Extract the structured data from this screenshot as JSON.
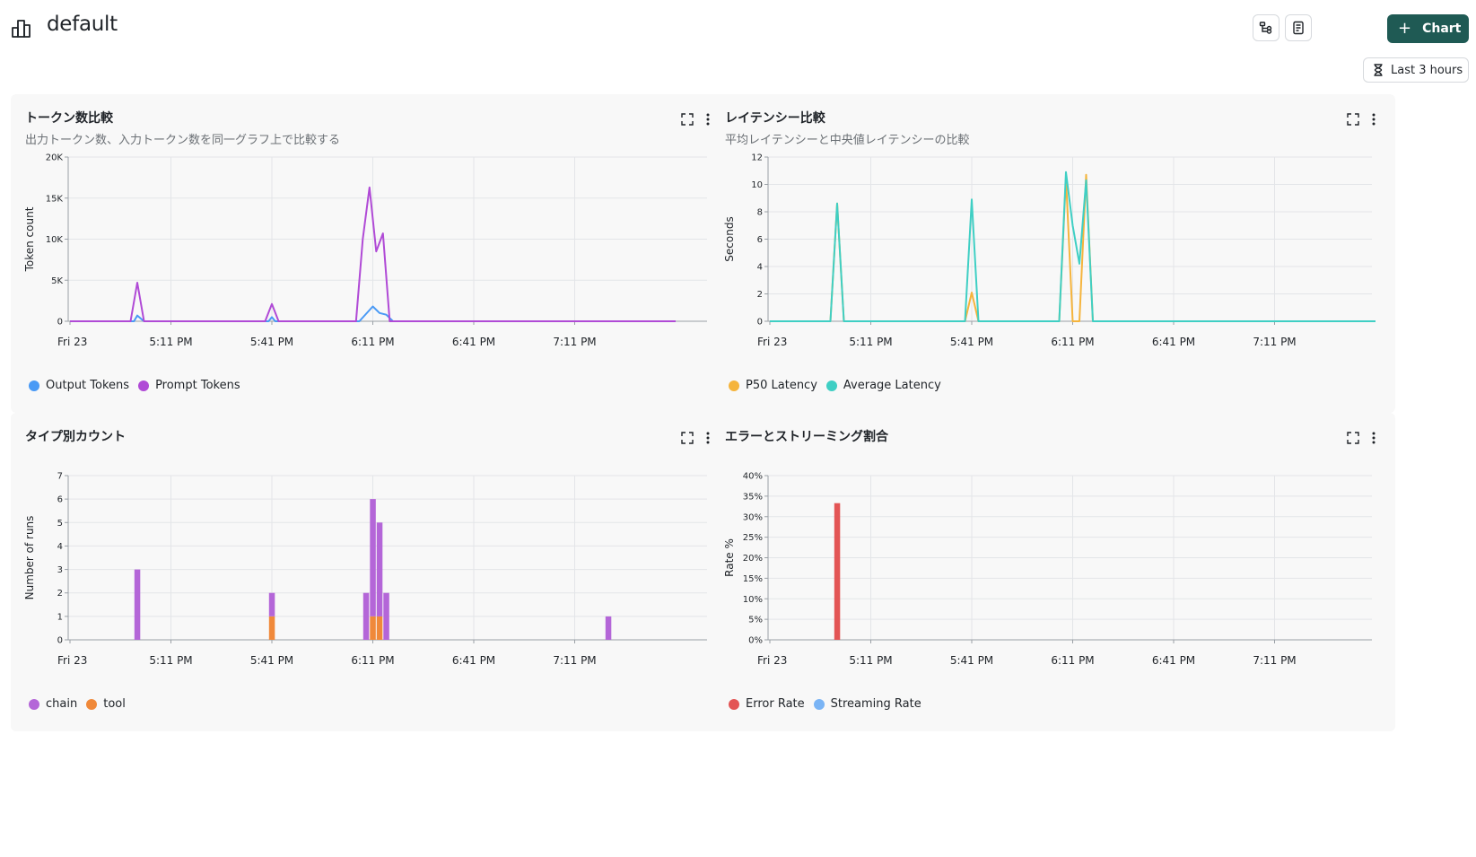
{
  "header": {
    "title": "default",
    "add_chart_label": "Chart",
    "time_range_label": "Last 3 hours"
  },
  "x_ticks": [
    "Fri 23",
    "5:11 PM",
    "5:41 PM",
    "6:11 PM",
    "6:41 PM",
    "7:11 PM"
  ],
  "colors": {
    "output_tokens": "#4a9af5",
    "prompt_tokens": "#b04ad6",
    "p50_latency": "#f5b43c",
    "average_latency": "#3fcfc4",
    "chain": "#b466d8",
    "tool": "#f0893a",
    "error_rate": "#e35555",
    "streaming_rate": "#7ab4f5",
    "accent": "#1f5a54"
  },
  "panels": [
    {
      "id": "tokens",
      "title": "トークン数比較",
      "subtitle": "出力トークン数、入力トークン数を同一グラフ上で比較する",
      "chart_data": {
        "type": "line",
        "ylabel": "Token count",
        "ylim": [
          0,
          20000
        ],
        "yticks": [
          "0",
          "5K",
          "10K",
          "15K",
          "20K"
        ],
        "ytick_values": [
          0,
          5000,
          10000,
          15000,
          20000
        ],
        "grid": true,
        "legend_position": "bottom-left",
        "x_span_minutes": 180,
        "series": [
          {
            "name": "Output Tokens",
            "color_key": "output_tokens",
            "points": [
              [
                0,
                0
              ],
              [
                19,
                0
              ],
              [
                20,
                700
              ],
              [
                22,
                0
              ],
              [
                59,
                0
              ],
              [
                60,
                500
              ],
              [
                61,
                0
              ],
              [
                86,
                0
              ],
              [
                90,
                1800
              ],
              [
                92,
                1000
              ],
              [
                94,
                800
              ],
              [
                96,
                0
              ],
              [
                180,
                0
              ]
            ]
          },
          {
            "name": "Prompt Tokens",
            "color_key": "prompt_tokens",
            "points": [
              [
                0,
                0
              ],
              [
                18,
                0
              ],
              [
                20,
                4700
              ],
              [
                22,
                0
              ],
              [
                58,
                0
              ],
              [
                60,
                2100
              ],
              [
                62,
                0
              ],
              [
                85,
                0
              ],
              [
                87,
                10000
              ],
              [
                89,
                16300
              ],
              [
                91,
                8500
              ],
              [
                93,
                10700
              ],
              [
                95,
                0
              ],
              [
                180,
                0
              ]
            ]
          }
        ]
      }
    },
    {
      "id": "latency",
      "title": "レイテンシー比較",
      "subtitle": "平均レイテンシーと中央値レイテンシーの比較",
      "chart_data": {
        "type": "line",
        "ylabel": "Seconds",
        "ylim": [
          0,
          12
        ],
        "yticks": [
          "0",
          "2",
          "4",
          "6",
          "8",
          "10",
          "12"
        ],
        "ytick_values": [
          0,
          2,
          4,
          6,
          8,
          10,
          12
        ],
        "grid": true,
        "legend_position": "bottom-left",
        "x_span_minutes": 180,
        "series": [
          {
            "name": "P50 Latency",
            "color_key": "p50_latency",
            "points": [
              [
                0,
                0
              ],
              [
                18,
                0
              ],
              [
                20,
                8.6
              ],
              [
                22,
                0
              ],
              [
                58,
                0
              ],
              [
                60,
                2.1
              ],
              [
                62,
                0
              ],
              [
                86,
                0
              ],
              [
                88,
                10.5
              ],
              [
                90,
                0
              ],
              [
                92,
                0
              ],
              [
                94,
                10.7
              ],
              [
                96,
                0
              ],
              [
                180,
                0
              ]
            ]
          },
          {
            "name": "Average Latency",
            "color_key": "average_latency",
            "points": [
              [
                0,
                0
              ],
              [
                18,
                0
              ],
              [
                20,
                8.6
              ],
              [
                22,
                0
              ],
              [
                58,
                0
              ],
              [
                60,
                8.9
              ],
              [
                62,
                0
              ],
              [
                86,
                0
              ],
              [
                88,
                10.9
              ],
              [
                90,
                7.0
              ],
              [
                92,
                4.2
              ],
              [
                94,
                10.3
              ],
              [
                96,
                0
              ],
              [
                180,
                0
              ]
            ]
          }
        ]
      }
    },
    {
      "id": "runs-by-type",
      "title": "タイプ別カウント",
      "subtitle": "",
      "chart_data": {
        "type": "bar",
        "stacked": true,
        "ylabel": "Number of runs",
        "ylim": [
          0,
          7
        ],
        "yticks": [
          "0",
          "1",
          "2",
          "3",
          "4",
          "5",
          "6",
          "7"
        ],
        "ytick_values": [
          0,
          1,
          2,
          3,
          4,
          5,
          6,
          7
        ],
        "grid": true,
        "legend_position": "bottom-left",
        "x_span_minutes": 180,
        "bar_width_minutes": 2,
        "series": [
          {
            "name": "chain",
            "color_key": "chain",
            "points": [
              [
                20,
                3
              ],
              [
                60,
                1
              ],
              [
                88,
                2
              ],
              [
                90,
                5
              ],
              [
                92,
                4
              ],
              [
                94,
                2
              ],
              [
                160,
                1
              ]
            ]
          },
          {
            "name": "tool",
            "color_key": "tool",
            "points": [
              [
                60,
                1
              ],
              [
                90,
                1
              ],
              [
                92,
                1
              ]
            ]
          }
        ]
      }
    },
    {
      "id": "error-streaming",
      "title": "エラーとストリーミング割合",
      "subtitle": "",
      "chart_data": {
        "type": "bar",
        "stacked": false,
        "ylabel": "Rate %",
        "ylim": [
          0,
          40
        ],
        "yticks": [
          "0%",
          "5%",
          "10%",
          "15%",
          "20%",
          "25%",
          "30%",
          "35%",
          "40%"
        ],
        "ytick_values": [
          0,
          5,
          10,
          15,
          20,
          25,
          30,
          35,
          40
        ],
        "grid": true,
        "legend_position": "bottom-left",
        "x_span_minutes": 180,
        "bar_width_minutes": 2,
        "series": [
          {
            "name": "Error Rate",
            "color_key": "error_rate",
            "points": [
              [
                20,
                33.3
              ]
            ]
          },
          {
            "name": "Streaming Rate",
            "color_key": "streaming_rate",
            "points": []
          }
        ]
      }
    }
  ]
}
